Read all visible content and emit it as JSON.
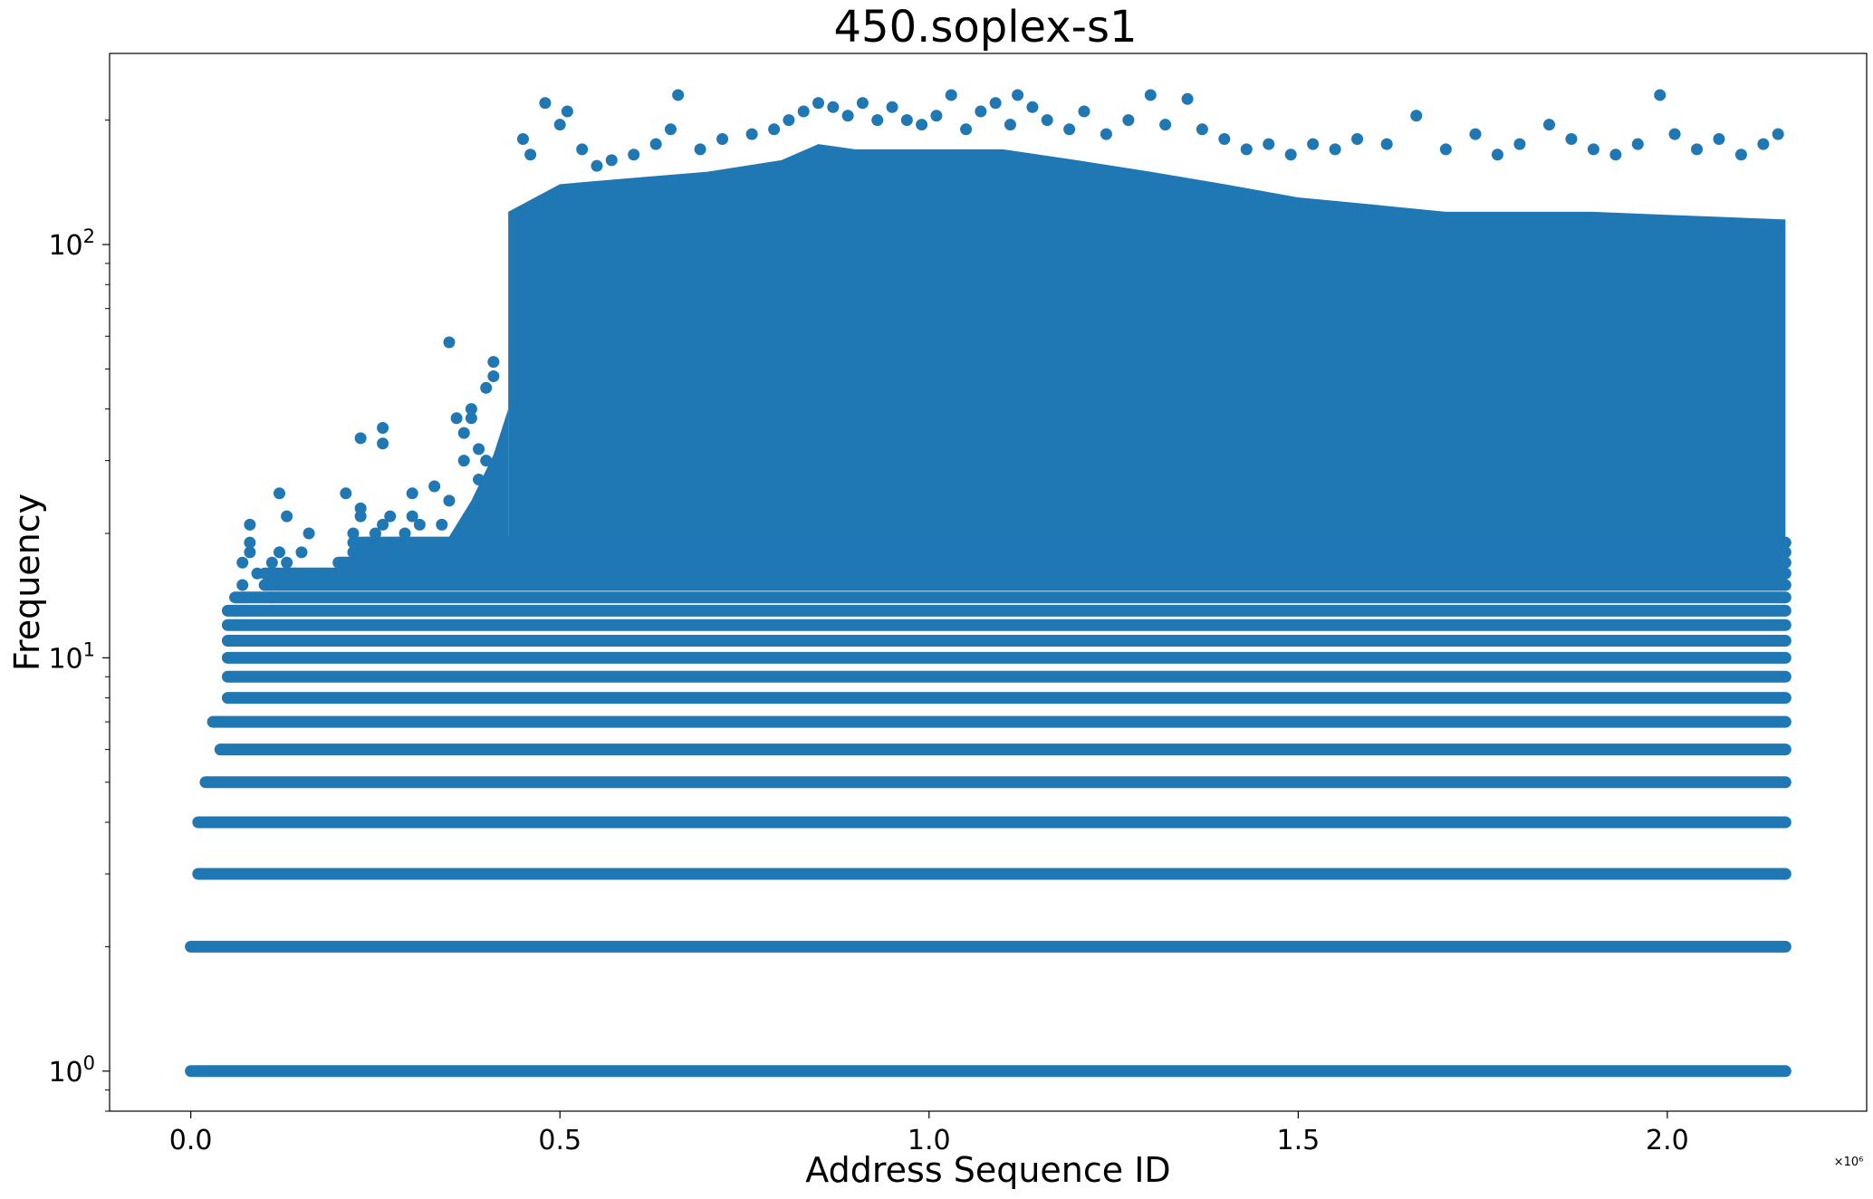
{
  "chart_data": {
    "type": "scatter",
    "title": "450.soplex-s1",
    "xlabel": "Address Sequence ID",
    "ylabel": "Frequency",
    "x_scale_label": "×10⁶",
    "x_scale_factor": 1000000,
    "y_scale": "log",
    "xlim": [
      -0.11,
      2.27
    ],
    "ylim": [
      0.8,
      290
    ],
    "grid": false,
    "x_ticks": [
      {
        "value": 0.0,
        "label": "0.0"
      },
      {
        "value": 0.5,
        "label": "0.5"
      },
      {
        "value": 1.0,
        "label": "1.0"
      },
      {
        "value": 1.5,
        "label": "1.5"
      },
      {
        "value": 2.0,
        "label": "2.0"
      }
    ],
    "y_ticks": [
      {
        "value": 1,
        "base": "10",
        "exp": "0"
      },
      {
        "value": 10,
        "base": "10",
        "exp": "1"
      },
      {
        "value": 100,
        "base": "10",
        "exp": "2"
      }
    ],
    "marker_color": "#1f77b4",
    "series": [
      {
        "x_max": 2.16,
        "frequency_bands": [
          {
            "frequency": 1,
            "x_start": 0.0
          },
          {
            "frequency": 2,
            "x_start": 0.0
          },
          {
            "frequency": 3,
            "x_start": 0.01
          },
          {
            "frequency": 4,
            "x_start": 0.01
          },
          {
            "frequency": 5,
            "x_start": 0.02
          },
          {
            "frequency": 6,
            "x_start": 0.04
          },
          {
            "frequency": 7,
            "x_start": 0.03
          },
          {
            "frequency": 8,
            "x_start": 0.05
          },
          {
            "frequency": 9,
            "x_start": 0.05
          },
          {
            "frequency": 10,
            "x_start": 0.05
          },
          {
            "frequency": 11,
            "x_start": 0.05
          },
          {
            "frequency": 12,
            "x_start": 0.05
          },
          {
            "frequency": 13,
            "x_start": 0.05
          },
          {
            "frequency": 14,
            "x_start": 0.06
          },
          {
            "frequency": 15,
            "x_start": 0.1
          },
          {
            "frequency": 16,
            "x_start": 0.1
          },
          {
            "frequency": 17,
            "x_start": 0.2
          },
          {
            "frequency": 18,
            "x_start": 0.22
          },
          {
            "frequency": 19,
            "x_start": 0.22
          }
        ],
        "dense_region": {
          "x_start": 0.43,
          "x_end": 2.16,
          "freq_low": 16,
          "freq_high": 110
        },
        "upper_envelope": [
          [
            0.43,
            120
          ],
          [
            0.5,
            140
          ],
          [
            0.6,
            145
          ],
          [
            0.7,
            150
          ],
          [
            0.8,
            160
          ],
          [
            0.85,
            175
          ],
          [
            0.9,
            170
          ],
          [
            1.0,
            170
          ],
          [
            1.1,
            170
          ],
          [
            1.2,
            160
          ],
          [
            1.3,
            150
          ],
          [
            1.4,
            140
          ],
          [
            1.5,
            130
          ],
          [
            1.6,
            125
          ],
          [
            1.7,
            120
          ],
          [
            1.8,
            120
          ],
          [
            1.9,
            120
          ],
          [
            2.0,
            118
          ],
          [
            2.16,
            115
          ]
        ],
        "outliers": [
          [
            0.06,
            13
          ],
          [
            0.07,
            17
          ],
          [
            0.07,
            15
          ],
          [
            0.08,
            18
          ],
          [
            0.08,
            21
          ],
          [
            0.08,
            19
          ],
          [
            0.09,
            16
          ],
          [
            0.11,
            14
          ],
          [
            0.11,
            17
          ],
          [
            0.12,
            25
          ],
          [
            0.12,
            18
          ],
          [
            0.13,
            22
          ],
          [
            0.13,
            17
          ],
          [
            0.14,
            16
          ],
          [
            0.15,
            18
          ],
          [
            0.16,
            20
          ],
          [
            0.17,
            15
          ],
          [
            0.21,
            25
          ],
          [
            0.22,
            20
          ],
          [
            0.23,
            23
          ],
          [
            0.23,
            22
          ],
          [
            0.23,
            34
          ],
          [
            0.24,
            19
          ],
          [
            0.25,
            20
          ],
          [
            0.26,
            21
          ],
          [
            0.26,
            36
          ],
          [
            0.26,
            33
          ],
          [
            0.27,
            22
          ],
          [
            0.28,
            19
          ],
          [
            0.29,
            20
          ],
          [
            0.3,
            22
          ],
          [
            0.3,
            25
          ],
          [
            0.31,
            21
          ],
          [
            0.33,
            26
          ],
          [
            0.34,
            21
          ],
          [
            0.35,
            24
          ],
          [
            0.35,
            58
          ],
          [
            0.36,
            38
          ],
          [
            0.37,
            30
          ],
          [
            0.37,
            35
          ],
          [
            0.38,
            38
          ],
          [
            0.38,
            40
          ],
          [
            0.39,
            27
          ],
          [
            0.39,
            32
          ],
          [
            0.4,
            45
          ],
          [
            0.4,
            30
          ],
          [
            0.41,
            52
          ],
          [
            0.41,
            48
          ],
          [
            0.42,
            30
          ],
          [
            0.45,
            180
          ],
          [
            0.46,
            165
          ],
          [
            0.48,
            220
          ],
          [
            0.5,
            195
          ],
          [
            0.51,
            210
          ],
          [
            0.53,
            170
          ],
          [
            0.55,
            155
          ],
          [
            0.57,
            160
          ],
          [
            0.6,
            165
          ],
          [
            0.63,
            175
          ],
          [
            0.65,
            190
          ],
          [
            0.66,
            230
          ],
          [
            0.69,
            170
          ],
          [
            0.72,
            180
          ],
          [
            0.76,
            185
          ],
          [
            0.79,
            190
          ],
          [
            0.81,
            200
          ],
          [
            0.83,
            210
          ],
          [
            0.85,
            220
          ],
          [
            0.87,
            215
          ],
          [
            0.89,
            205
          ],
          [
            0.91,
            220
          ],
          [
            0.93,
            200
          ],
          [
            0.95,
            215
          ],
          [
            0.97,
            200
          ],
          [
            0.99,
            195
          ],
          [
            1.01,
            205
          ],
          [
            1.03,
            230
          ],
          [
            1.05,
            190
          ],
          [
            1.07,
            210
          ],
          [
            1.09,
            220
          ],
          [
            1.11,
            195
          ],
          [
            1.12,
            230
          ],
          [
            1.14,
            215
          ],
          [
            1.16,
            200
          ],
          [
            1.19,
            190
          ],
          [
            1.21,
            210
          ],
          [
            1.24,
            185
          ],
          [
            1.27,
            200
          ],
          [
            1.3,
            230
          ],
          [
            1.32,
            195
          ],
          [
            1.35,
            225
          ],
          [
            1.37,
            190
          ],
          [
            1.4,
            180
          ],
          [
            1.43,
            170
          ],
          [
            1.46,
            175
          ],
          [
            1.49,
            165
          ],
          [
            1.52,
            175
          ],
          [
            1.55,
            170
          ],
          [
            1.58,
            180
          ],
          [
            1.62,
            175
          ],
          [
            1.66,
            205
          ],
          [
            1.7,
            170
          ],
          [
            1.74,
            185
          ],
          [
            1.77,
            165
          ],
          [
            1.8,
            175
          ],
          [
            1.84,
            195
          ],
          [
            1.87,
            180
          ],
          [
            1.9,
            170
          ],
          [
            1.93,
            165
          ],
          [
            1.96,
            175
          ],
          [
            1.99,
            230
          ],
          [
            2.01,
            185
          ],
          [
            2.04,
            170
          ],
          [
            2.07,
            180
          ],
          [
            2.1,
            165
          ],
          [
            2.13,
            175
          ],
          [
            2.15,
            185
          ]
        ]
      }
    ]
  }
}
